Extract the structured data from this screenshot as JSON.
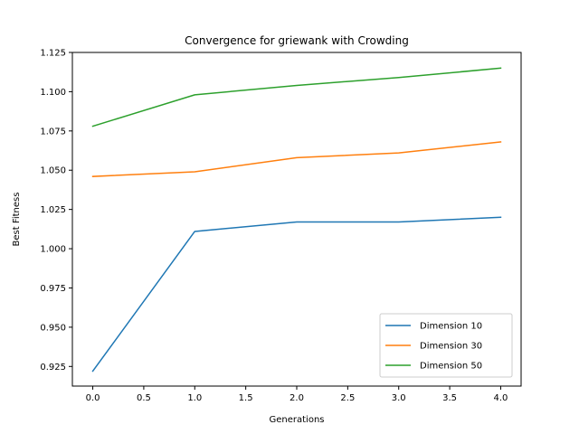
{
  "chart_data": {
    "type": "line",
    "title": "Convergence for griewank with Crowding",
    "xlabel": "Generations",
    "ylabel": "Best Fitness",
    "x": [
      0,
      1,
      2,
      3,
      4
    ],
    "xlim": [
      -0.2,
      4.2
    ],
    "ylim": [
      0.9125,
      1.125
    ],
    "xticks": [
      0,
      0.5,
      1,
      1.5,
      2,
      2.5,
      3,
      3.5,
      4
    ],
    "xtick_labels": [
      "0.0",
      "0.5",
      "1.0",
      "1.5",
      "2.0",
      "2.5",
      "3.0",
      "3.5",
      "4.0"
    ],
    "yticks": [
      0.925,
      0.95,
      0.975,
      1.0,
      1.025,
      1.05,
      1.075,
      1.1,
      1.125
    ],
    "ytick_labels": [
      "0.925",
      "0.950",
      "0.975",
      "1.000",
      "1.025",
      "1.050",
      "1.075",
      "1.100",
      "1.125"
    ],
    "grid": false,
    "legend_position": "lower-right",
    "series": [
      {
        "name": "Dimension 10",
        "color": "#1f77b4",
        "values": [
          0.922,
          1.011,
          1.017,
          1.017,
          1.02
        ]
      },
      {
        "name": "Dimension 30",
        "color": "#ff7f0e",
        "values": [
          1.046,
          1.049,
          1.058,
          1.061,
          1.068
        ]
      },
      {
        "name": "Dimension 50",
        "color": "#2ca02c",
        "values": [
          1.078,
          1.098,
          1.104,
          1.109,
          1.115
        ]
      }
    ]
  }
}
